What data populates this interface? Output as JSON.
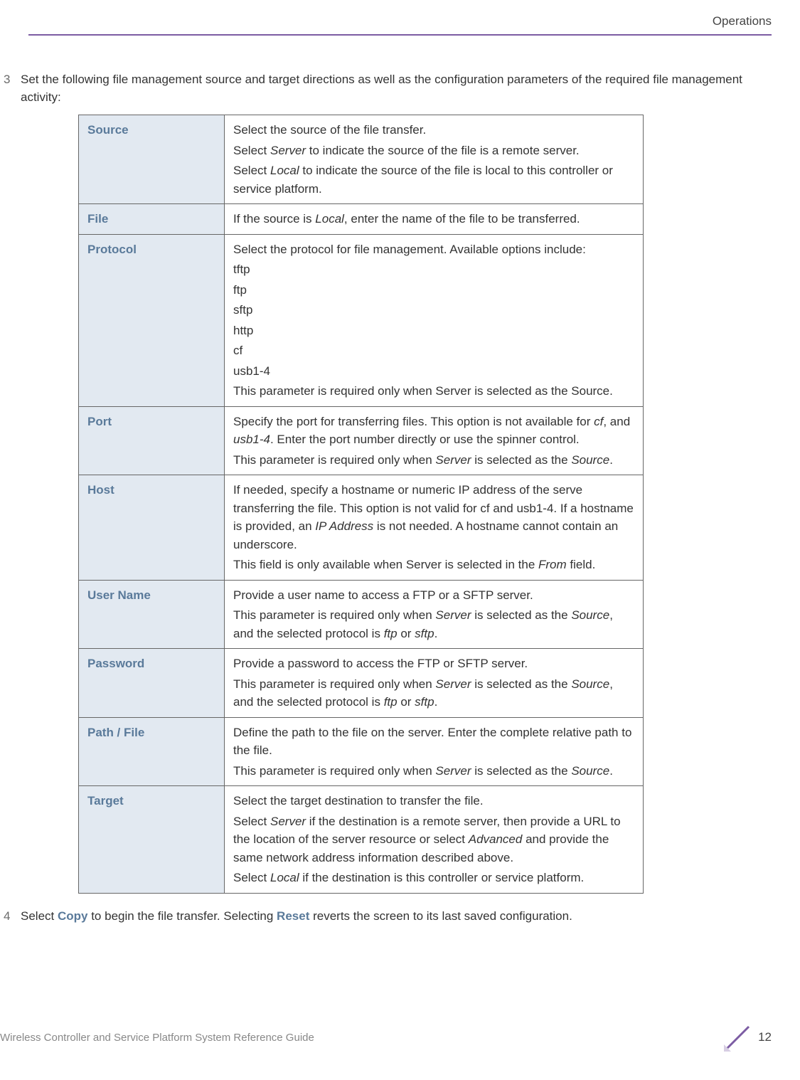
{
  "header": {
    "section_title": "Operations"
  },
  "steps": {
    "step3": {
      "number": "3",
      "text": "Set the following file management source and target directions as well as the configuration parameters of the required file management activity:"
    },
    "step4": {
      "number": "4",
      "text_parts": {
        "p1": "Select ",
        "copy": "Copy",
        "p2": " to begin the file transfer. Selecting ",
        "reset": "Reset",
        "p3": " reverts the screen to its last saved configuration."
      }
    }
  },
  "table": {
    "rows": [
      {
        "label": "Source",
        "desc": [
          {
            "type": "plain",
            "text": "Select the source of the file transfer."
          },
          {
            "type": "html",
            "text": "Select <em>Server</em> to indicate the source of the file is a remote server."
          },
          {
            "type": "html",
            "text": "Select <em>Local</em> to indicate the source of the file is local to this controller or service platform."
          }
        ]
      },
      {
        "label": "File",
        "desc": [
          {
            "type": "html",
            "text": "If the source is <em>Local</em>, enter the name of the file to be transferred."
          }
        ]
      },
      {
        "label": "Protocol",
        "desc": [
          {
            "type": "plain",
            "text": "Select the protocol for file management. Available options include:"
          },
          {
            "type": "plain",
            "text": "tftp"
          },
          {
            "type": "plain",
            "text": "ftp"
          },
          {
            "type": "plain",
            "text": "sftp"
          },
          {
            "type": "plain",
            "text": "http"
          },
          {
            "type": "plain",
            "text": "cf"
          },
          {
            "type": "plain",
            "text": "usb1-4"
          },
          {
            "type": "plain",
            "text": "This parameter is required only when Server is selected as the Source."
          }
        ]
      },
      {
        "label": "Port",
        "desc": [
          {
            "type": "html",
            "text": "Specify the port for transferring files. This option is not available for <em>cf</em>, and <em>usb1-4</em>. Enter the port number directly or use the spinner control."
          },
          {
            "type": "html",
            "text": "This parameter is required only when <em>Server</em> is selected as the <em>Source</em>."
          }
        ]
      },
      {
        "label": "Host",
        "desc": [
          {
            "type": "html",
            "text": "If needed, specify a hostname or numeric IP address of the serve transferring the file. This option is not valid for cf and usb1-4. If a hostname is provided, an <em>IP Address</em> is not needed. A hostname cannot contain an underscore."
          },
          {
            "type": "html",
            "text": "This field is only available when Server is selected in the <em>From</em> field."
          }
        ]
      },
      {
        "label": "User Name",
        "desc": [
          {
            "type": "plain",
            "text": "Provide a user name to access a FTP or a SFTP server."
          },
          {
            "type": "html",
            "text": "This parameter is required only when <em>Server</em> is selected as the <em>Source</em>, and the selected protocol is <em>ftp</em> or <em>sftp</em>."
          }
        ]
      },
      {
        "label": "Password",
        "desc": [
          {
            "type": "plain",
            "text": "Provide a password to access the FTP or SFTP server."
          },
          {
            "type": "html",
            "text": "This parameter is required only when <em>Server</em> is selected as the <em>Source</em>, and the selected protocol is <em>ftp</em> or <em>sftp</em>."
          }
        ]
      },
      {
        "label": "Path / File",
        "desc": [
          {
            "type": "plain",
            "text": "Define the path to the file on the server. Enter the complete relative path to the file."
          },
          {
            "type": "html",
            "text": "This parameter is required only when <em>Server</em> is selected as the <em>Source</em>."
          }
        ]
      },
      {
        "label": "Target",
        "desc": [
          {
            "type": "plain",
            "text": "Select the target destination to transfer the file."
          },
          {
            "type": "html",
            "text": "Select <em>Server</em> if the destination is a remote server, then provide a URL to the location of the server resource or select <em>Advanced</em> and provide the same network address information described above."
          },
          {
            "type": "html",
            "text": "Select <em>Local</em> if the destination is this controller or service platform."
          }
        ]
      }
    ]
  },
  "footer": {
    "left_text": "Wireless Controller and Service Platform System Reference Guide",
    "page_number": "12"
  },
  "colors": {
    "accent": "#7c5ca3",
    "table_header_bg": "#e2e9f1",
    "table_header_text": "#5a7a9a",
    "border": "#666666",
    "body_text": "#333333",
    "footer_text": "#888888"
  }
}
